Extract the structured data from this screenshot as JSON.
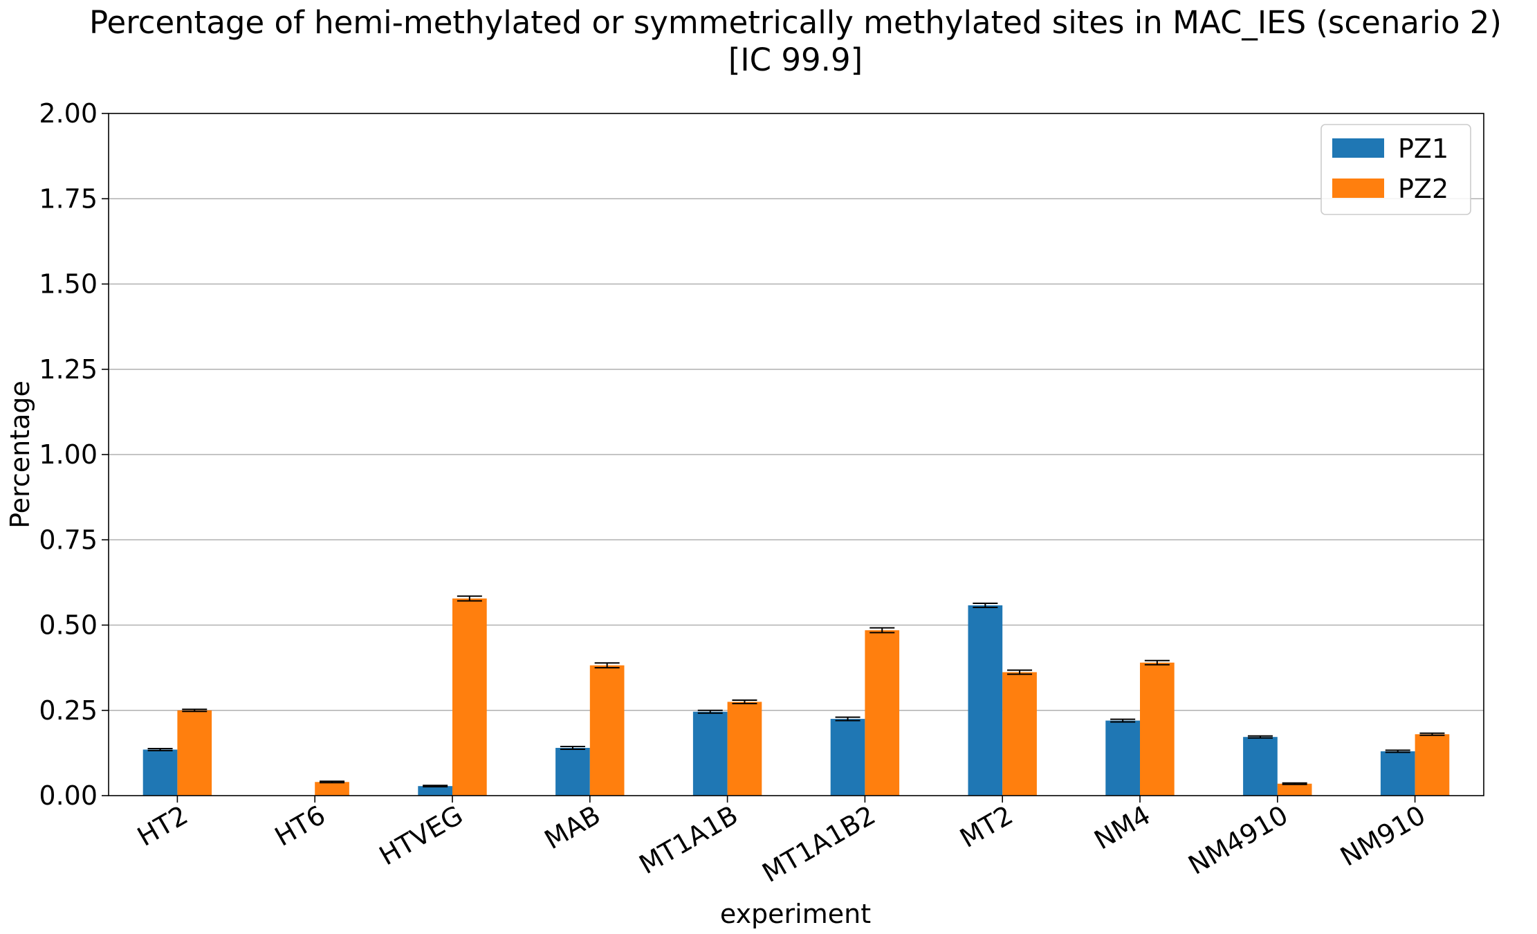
{
  "chart_data": {
    "type": "bar",
    "title": "Percentage of hemi-methylated or symmetrically methylated sites in MAC_IES (scenario 2)",
    "subtitle": "[IC 99.9]",
    "xlabel": "experiment",
    "ylabel": "Percentage",
    "ylim": [
      0,
      2.0
    ],
    "yticks": [
      "0.00",
      "0.25",
      "0.50",
      "0.75",
      "1.00",
      "1.25",
      "1.50",
      "1.75",
      "2.00"
    ],
    "ytick_values": [
      0,
      0.25,
      0.5,
      0.75,
      1.0,
      1.25,
      1.5,
      1.75,
      2.0
    ],
    "categories": [
      "HT2",
      "HT6",
      "HTVEG",
      "MAB",
      "MT1A1B",
      "MT1A1B2",
      "MT2",
      "NM4",
      "NM4910",
      "NM910"
    ],
    "series": [
      {
        "name": "PZ1",
        "color": "#1f77b4",
        "values": [
          0.135,
          0.0,
          0.028,
          0.14,
          0.246,
          0.225,
          0.558,
          0.22,
          0.172,
          0.13
        ],
        "error": [
          0.003,
          0.0,
          0.002,
          0.004,
          0.004,
          0.005,
          0.006,
          0.004,
          0.003,
          0.003
        ]
      },
      {
        "name": "PZ2",
        "color": "#ff7f0e",
        "values": [
          0.25,
          0.04,
          0.578,
          0.382,
          0.275,
          0.485,
          0.362,
          0.39,
          0.035,
          0.18
        ],
        "error": [
          0.003,
          0.002,
          0.007,
          0.007,
          0.005,
          0.007,
          0.006,
          0.006,
          0.002,
          0.003
        ]
      }
    ],
    "grid": "y",
    "legend_position": "top-right"
  }
}
